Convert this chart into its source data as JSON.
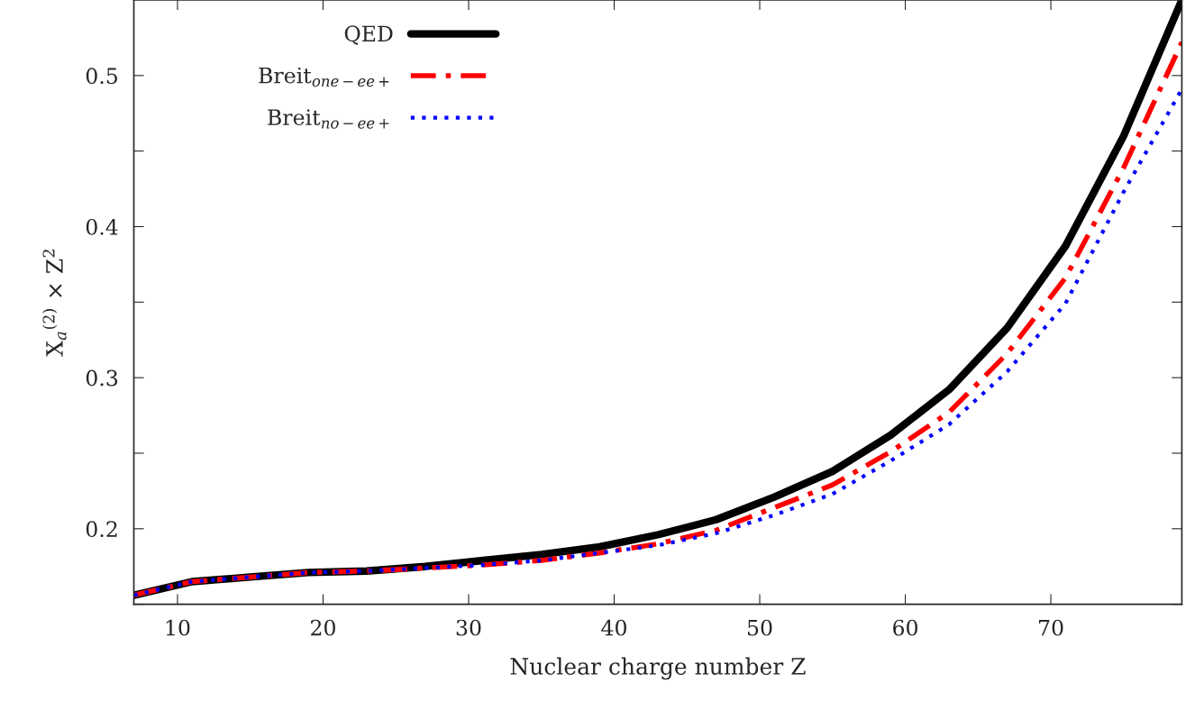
{
  "chart_data": {
    "type": "line",
    "xlabel": "Nuclear charge number Z",
    "ylabel": "X$_{a}$$^{(2)}$ × Z$^{2}$",
    "x": [
      7,
      11,
      15,
      19,
      23,
      27,
      31,
      35,
      39,
      43,
      47,
      51,
      55,
      59,
      63,
      67,
      71,
      75,
      79
    ],
    "series": [
      {
        "name": "QED",
        "color": "#000000",
        "line_style": "solid",
        "values": [
          0.156,
          0.165,
          0.168,
          0.171,
          0.172,
          0.175,
          0.179,
          0.183,
          0.188,
          0.196,
          0.206,
          0.221,
          0.238,
          0.262,
          0.292,
          0.333,
          0.387,
          0.46,
          0.55
        ]
      },
      {
        "name": "Breit$_{one−ee+}$",
        "color": "#ff0000",
        "line_style": "dashdot",
        "values": [
          0.156,
          0.165,
          0.168,
          0.171,
          0.172,
          0.174,
          0.176,
          0.179,
          0.184,
          0.19,
          0.199,
          0.214,
          0.229,
          0.251,
          0.277,
          0.316,
          0.366,
          0.439,
          0.522
        ]
      },
      {
        "name": "Breit$_{no−ee+}$",
        "color": "#0000ff",
        "line_style": "dotted",
        "values": [
          0.156,
          0.165,
          0.168,
          0.171,
          0.172,
          0.174,
          0.176,
          0.179,
          0.184,
          0.189,
          0.197,
          0.209,
          0.223,
          0.245,
          0.269,
          0.304,
          0.349,
          0.423,
          0.491
        ]
      }
    ],
    "xlim": [
      7,
      79
    ],
    "ylim": [
      0.15,
      0.55
    ],
    "xticks": [
      10,
      20,
      30,
      40,
      50,
      60,
      70
    ],
    "yticks": [
      {
        "value": 0.15,
        "label": null
      },
      0.2,
      {
        "value": 0.25,
        "label": null
      },
      0.3,
      {
        "value": 0.35,
        "label": null
      },
      0.4,
      {
        "value": 0.45,
        "label": null
      },
      0.5
    ],
    "grid": false,
    "legend": "top left",
    "marker": "none"
  }
}
